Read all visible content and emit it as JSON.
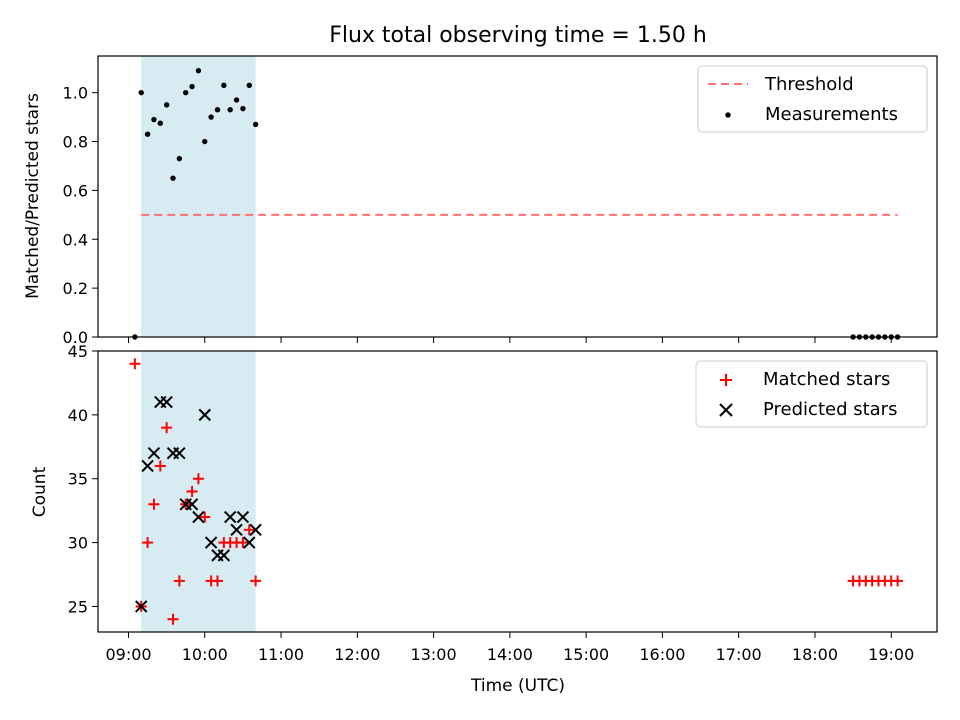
{
  "chart_data": [
    {
      "type": "scatter",
      "title": "Flux total observing time = 1.50 h",
      "xlabel": "",
      "ylabel": "Matched/Predicted stars",
      "ylim": [
        0,
        1.15
      ],
      "xlim": [
        "08:36",
        "19:36"
      ],
      "yticks": [
        "0.0",
        "0.2",
        "0.4",
        "0.6",
        "0.8",
        "1.0"
      ],
      "shaded_interval": [
        "09:10",
        "10:40"
      ],
      "legend_position": "top-right",
      "threshold": {
        "name": "Threshold",
        "value": 0.5,
        "x_start": "09:10",
        "x_end": "19:05",
        "color": "#ff7070"
      },
      "series": [
        {
          "name": "Measurements",
          "x": [
            "09:05",
            "09:10",
            "09:15",
            "09:20",
            "09:25",
            "09:30",
            "09:35",
            "09:40",
            "09:45",
            "09:50",
            "09:55",
            "10:00",
            "10:05",
            "10:10",
            "10:15",
            "10:20",
            "10:25",
            "10:30",
            "10:35",
            "10:40",
            "18:30",
            "18:35",
            "18:40",
            "18:45",
            "18:50",
            "18:55",
            "19:00",
            "19:05"
          ],
          "values": [
            0.0,
            1.0,
            0.83,
            0.89,
            0.875,
            0.95,
            0.65,
            0.73,
            1.0,
            1.025,
            1.09,
            0.8,
            0.9,
            0.93,
            1.03,
            0.93,
            0.97,
            0.935,
            1.03,
            0.87,
            0.0,
            0.0,
            0.0,
            0.0,
            0.0,
            0.0,
            0.0,
            0.0
          ]
        }
      ]
    },
    {
      "type": "scatter",
      "xlabel": "Time (UTC)",
      "ylabel": "Count",
      "ylim": [
        23,
        45
      ],
      "yticks": [
        "25",
        "30",
        "35",
        "40",
        "45"
      ],
      "xticks": [
        "09:00",
        "10:00",
        "11:00",
        "12:00",
        "13:00",
        "14:00",
        "15:00",
        "16:00",
        "17:00",
        "18:00",
        "19:00"
      ],
      "legend_position": "top-right",
      "series": [
        {
          "name": "Matched stars",
          "marker": "+",
          "color": "#ff0000",
          "x": [
            "09:05",
            "09:10",
            "09:15",
            "09:20",
            "09:25",
            "09:30",
            "09:35",
            "09:40",
            "09:45",
            "09:50",
            "09:55",
            "10:00",
            "10:05",
            "10:10",
            "10:15",
            "10:20",
            "10:25",
            "10:30",
            "10:35",
            "10:40",
            "18:30",
            "18:35",
            "18:40",
            "18:45",
            "18:50",
            "18:55",
            "19:00",
            "19:05"
          ],
          "values": [
            44,
            25,
            30,
            33,
            36,
            39,
            24,
            27,
            33,
            34,
            35,
            32,
            27,
            27,
            30,
            30,
            30,
            30,
            31,
            27,
            27,
            27,
            27,
            27,
            27,
            27,
            27,
            27
          ]
        },
        {
          "name": "Predicted stars",
          "marker": "x",
          "color": "#000000",
          "x": [
            "09:10",
            "09:15",
            "09:20",
            "09:25",
            "09:30",
            "09:35",
            "09:40",
            "09:45",
            "09:50",
            "09:55",
            "10:00",
            "10:05",
            "10:10",
            "10:15",
            "10:20",
            "10:25",
            "10:30",
            "10:35",
            "10:40"
          ],
          "values": [
            25,
            36,
            37,
            41,
            41,
            37,
            37,
            33,
            33,
            32,
            40,
            30,
            29,
            29,
            32,
            31,
            32,
            30,
            31
          ]
        }
      ]
    }
  ]
}
